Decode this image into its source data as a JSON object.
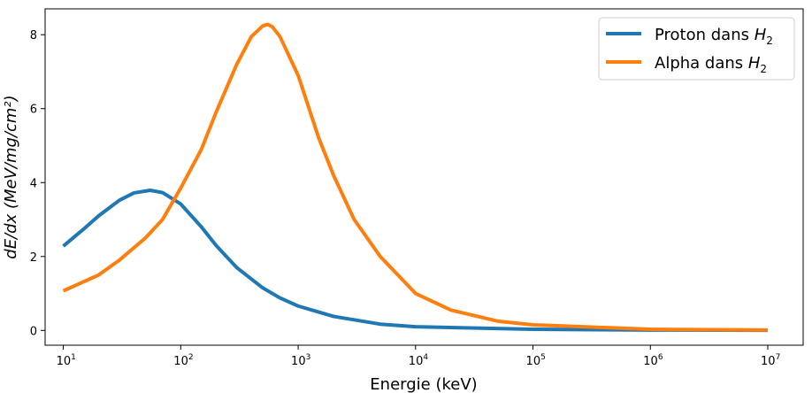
{
  "chart_data": {
    "type": "line",
    "xlabel": "Energie (keV)",
    "ylabel": "dE/dx (MeV/mg/cm²)",
    "xscale": "log",
    "xlim": [
      7,
      20000000
    ],
    "ylim": [
      -0.4,
      8.7
    ],
    "x_ticks": [
      {
        "value": 10,
        "base": "10",
        "exp": "1"
      },
      {
        "value": 100,
        "base": "10",
        "exp": "2"
      },
      {
        "value": 1000,
        "base": "10",
        "exp": "3"
      },
      {
        "value": 10000,
        "base": "10",
        "exp": "4"
      },
      {
        "value": 100000,
        "base": "10",
        "exp": "5"
      },
      {
        "value": 1000000,
        "base": "10",
        "exp": "6"
      },
      {
        "value": 10000000,
        "base": "10",
        "exp": "7"
      }
    ],
    "y_ticks": [
      0,
      2,
      4,
      6,
      8
    ],
    "grid": false,
    "legend_position": "top-right",
    "series": [
      {
        "name": "Proton dans H2",
        "legend_main": "Proton dans ",
        "legend_sub": "2",
        "color": "#1f77b4",
        "x": [
          10,
          15,
          20,
          30,
          40,
          55,
          70,
          100,
          150,
          200,
          300,
          500,
          700,
          1000,
          2000,
          5000,
          10000,
          100000,
          1000000,
          10000000
        ],
        "y": [
          2.28,
          2.75,
          3.1,
          3.52,
          3.72,
          3.79,
          3.73,
          3.42,
          2.8,
          2.3,
          1.7,
          1.15,
          0.88,
          0.66,
          0.38,
          0.17,
          0.1,
          0.03,
          0.01,
          0.005
        ]
      },
      {
        "name": "Alpha dans H2",
        "legend_main": "Alpha dans ",
        "legend_sub": "2",
        "color": "#ff7f0e",
        "x": [
          10,
          20,
          30,
          50,
          70,
          100,
          150,
          200,
          300,
          400,
          500,
          550,
          600,
          700,
          1000,
          1500,
          2000,
          3000,
          5000,
          10000,
          20000,
          50000,
          100000,
          1000000,
          10000000
        ],
        "y": [
          1.07,
          1.5,
          1.9,
          2.5,
          3.0,
          3.85,
          4.9,
          5.9,
          7.2,
          7.95,
          8.24,
          8.28,
          8.22,
          7.95,
          6.9,
          5.2,
          4.2,
          3.0,
          2.0,
          1.0,
          0.55,
          0.25,
          0.15,
          0.03,
          0.01
        ]
      }
    ]
  }
}
